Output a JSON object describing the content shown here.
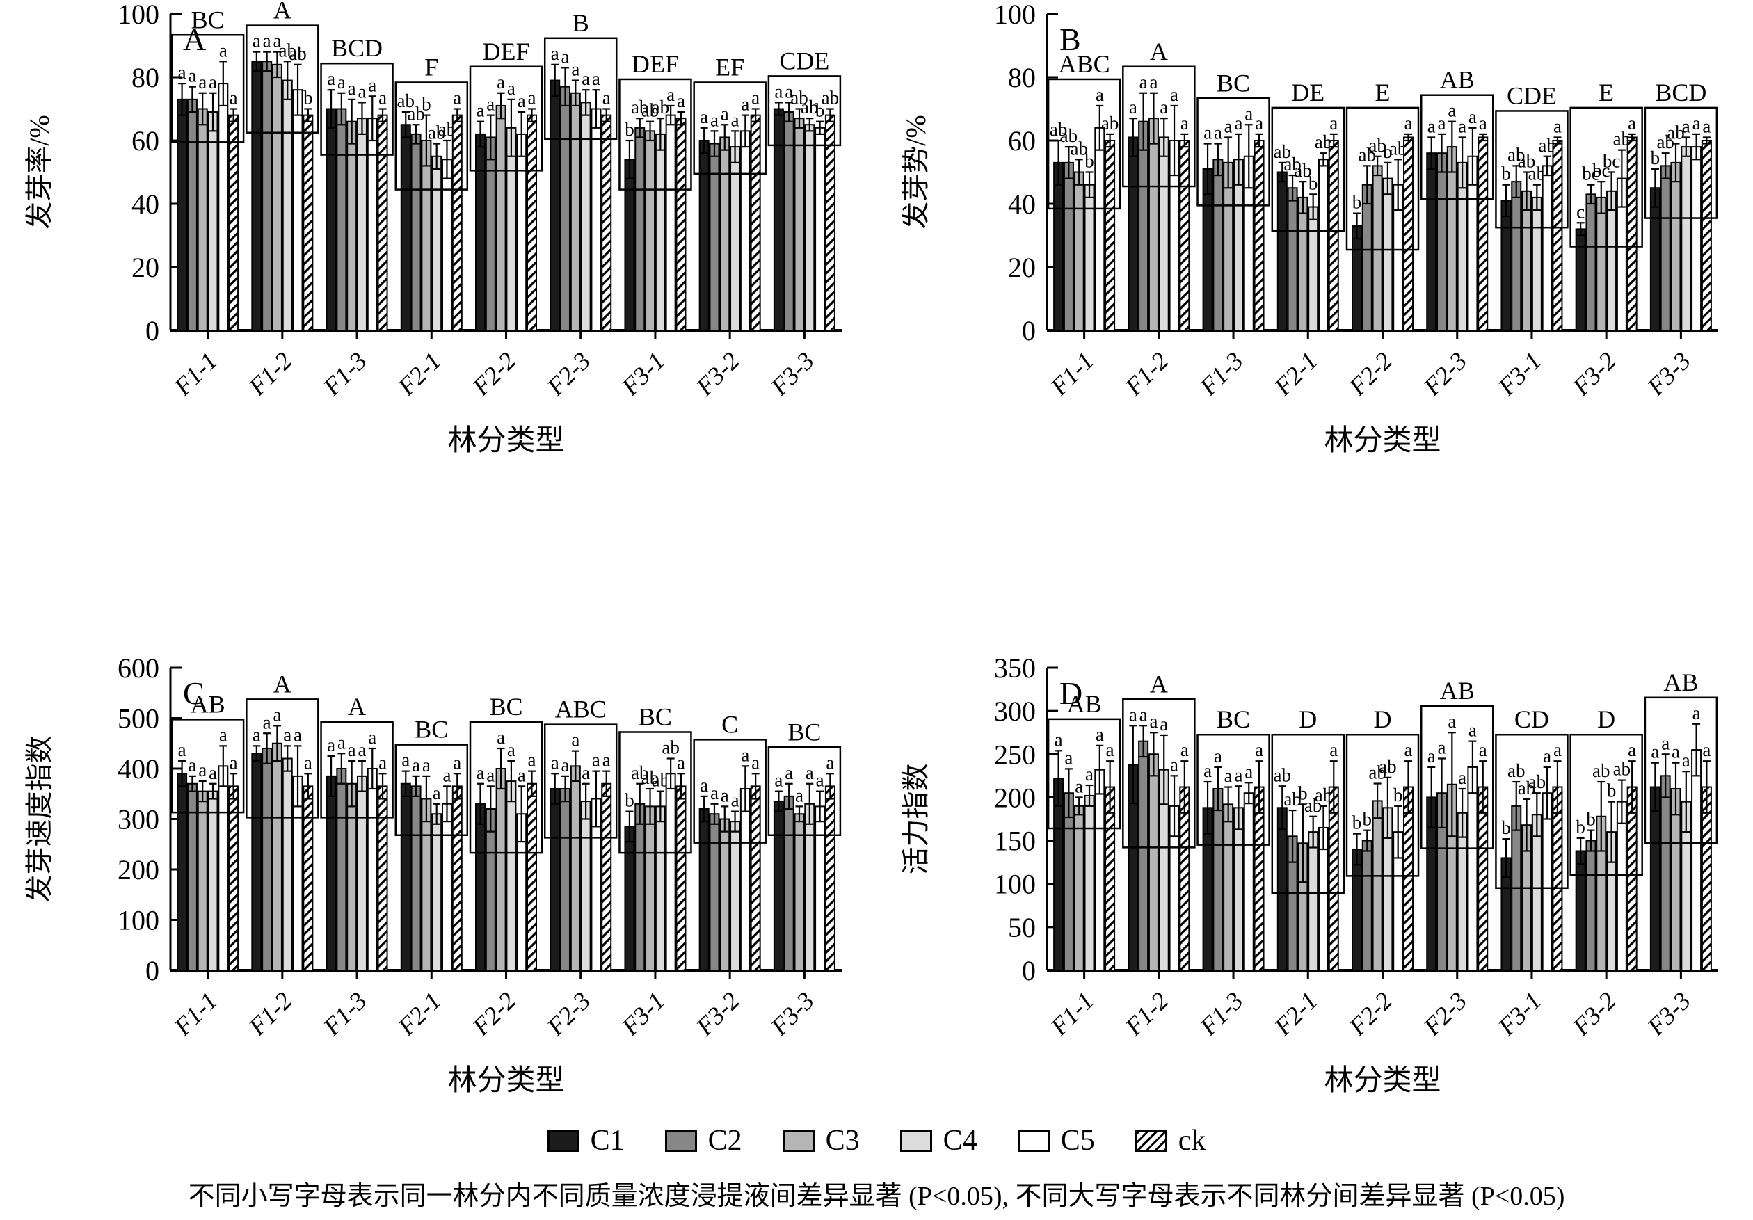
{
  "figure": {
    "caption": "不同小写字母表示同一林分内不同质量浓度浸提液间差异显著 (P<0.05), 不同大写字母表示不同林分间差异显著 (P<0.05)",
    "xlabel": "林分类型",
    "categories": [
      "F1-1",
      "F1-2",
      "F1-3",
      "F2-1",
      "F2-2",
      "F2-3",
      "F3-1",
      "F3-2",
      "F3-3"
    ],
    "legend": [
      {
        "label": "C1",
        "fill": "#1c1c1c",
        "pattern": "solid"
      },
      {
        "label": "C2",
        "fill": "#878787",
        "pattern": "solid"
      },
      {
        "label": "C3",
        "fill": "#b5b5b5",
        "pattern": "solid"
      },
      {
        "label": "C4",
        "fill": "#dcdcdc",
        "pattern": "solid"
      },
      {
        "label": "C5",
        "fill": "#ffffff",
        "pattern": "solid"
      },
      {
        "label": "ck",
        "fill": "#ffffff",
        "pattern": "hatch"
      }
    ]
  },
  "chart_data": [
    {
      "id": "A",
      "type": "bar",
      "ylabel": "发芽率/%",
      "ylim": [
        0,
        100
      ],
      "ytick_step": 20,
      "group_letters": [
        "BC",
        "A",
        "BCD",
        "F",
        "DEF",
        "B",
        "DEF",
        "EF",
        "CDE"
      ],
      "series": [
        {
          "name": "C1",
          "values": [
            73,
            85,
            70,
            65,
            62,
            79,
            54,
            60,
            70
          ],
          "errors": [
            5,
            3,
            6,
            4,
            4,
            5,
            6,
            4,
            2
          ],
          "letters": [
            "a",
            "a",
            "a",
            "ab",
            "a",
            "a",
            "b",
            "a",
            "a"
          ]
        },
        {
          "name": "C2",
          "values": [
            73,
            85,
            70,
            62,
            61,
            77,
            64,
            59,
            69
          ],
          "errors": [
            4,
            3,
            5,
            3,
            7,
            6,
            3,
            4,
            3
          ],
          "letters": [
            "a",
            "a",
            "a",
            "ab",
            "a",
            "a",
            "ab",
            "a",
            "a"
          ]
        },
        {
          "name": "C3",
          "values": [
            70,
            84,
            66,
            60,
            71,
            75,
            63,
            61,
            67
          ],
          "errors": [
            5,
            4,
            7,
            8,
            4,
            4,
            3,
            4,
            3
          ],
          "letters": [
            "a",
            "a",
            "a",
            "b",
            "a",
            "a",
            "ab",
            "a",
            "ab"
          ]
        },
        {
          "name": "C4",
          "values": [
            69,
            79,
            67,
            55,
            64,
            72,
            62,
            58,
            65
          ],
          "errors": [
            6,
            6,
            5,
            4,
            9,
            4,
            5,
            5,
            2
          ],
          "letters": [
            "a",
            "ab",
            "a",
            "ab",
            "a",
            "a",
            "ab",
            "a",
            "ab"
          ]
        },
        {
          "name": "C5",
          "values": [
            78,
            76,
            67,
            54,
            62,
            70,
            68,
            63,
            64
          ],
          "errors": [
            7,
            8,
            7,
            6,
            7,
            6,
            3,
            5,
            2
          ],
          "letters": [
            "a",
            "ab",
            "a",
            "ab",
            "a",
            "a",
            "a",
            "a",
            "b"
          ]
        },
        {
          "name": "ck",
          "values": [
            68,
            68,
            68,
            68,
            68,
            68,
            67,
            68,
            68
          ],
          "errors": [
            2,
            2,
            2,
            2,
            2,
            2,
            2,
            2,
            2
          ],
          "letters": [
            "a",
            "b",
            "a",
            "a",
            "a",
            "a",
            "a",
            "a",
            "ab"
          ]
        }
      ]
    },
    {
      "id": "B",
      "type": "bar",
      "ylabel": "发芽势/%",
      "ylim": [
        0,
        100
      ],
      "ytick_step": 20,
      "group_letters": [
        "ABC",
        "A",
        "BC",
        "DE",
        "E",
        "AB",
        "CDE",
        "E",
        "BCD"
      ],
      "series": [
        {
          "name": "C1",
          "values": [
            53,
            61,
            51,
            50,
            33,
            56,
            41,
            32,
            45
          ],
          "errors": [
            7,
            6,
            8,
            3,
            4,
            5,
            5,
            2,
            6
          ],
          "letters": [
            "ab",
            "a",
            "a",
            "ab",
            "b",
            "a",
            "b",
            "c",
            "b"
          ]
        },
        {
          "name": "C2",
          "values": [
            53,
            66,
            54,
            45,
            46,
            56,
            47,
            43,
            52
          ],
          "errors": [
            5,
            9,
            5,
            4,
            6,
            6,
            5,
            3,
            4
          ],
          "letters": [
            "ab",
            "a",
            "a",
            "ab",
            "ab",
            "a",
            "ab",
            "bc",
            "ab"
          ]
        },
        {
          "name": "C3",
          "values": [
            50,
            67,
            53,
            42,
            52,
            58,
            44,
            42,
            53
          ],
          "errors": [
            4,
            8,
            8,
            5,
            3,
            8,
            6,
            5,
            6
          ],
          "letters": [
            "ab",
            "a",
            "a",
            "ab",
            "ab",
            "a",
            "ab",
            "bc",
            "ab"
          ]
        },
        {
          "name": "C4",
          "values": [
            46,
            61,
            54,
            39,
            48,
            53,
            42,
            44,
            58
          ],
          "errors": [
            4,
            6,
            8,
            4,
            5,
            8,
            4,
            6,
            3
          ],
          "letters": [
            "b",
            "a",
            "a",
            "b",
            "b",
            "a",
            "ab",
            "bc",
            "a"
          ]
        },
        {
          "name": "C5",
          "values": [
            64,
            60,
            55,
            54,
            46,
            55,
            52,
            48,
            58
          ],
          "errors": [
            7,
            11,
            10,
            2,
            8,
            9,
            3,
            9,
            4
          ],
          "letters": [
            "a",
            "a",
            "a",
            "ab",
            "ab",
            "a",
            "ab",
            "ab",
            "a"
          ]
        },
        {
          "name": "ck",
          "values": [
            60,
            60,
            60,
            60,
            61,
            61,
            60,
            61,
            60
          ],
          "errors": [
            2,
            2,
            2,
            2,
            1,
            1,
            1,
            1,
            1
          ],
          "letters": [
            "ab",
            "a",
            "a",
            "a",
            "a",
            "a",
            "a",
            "a",
            "a"
          ]
        }
      ]
    },
    {
      "id": "C",
      "type": "bar",
      "ylabel": "发芽速度指数",
      "ylim": [
        0,
        600
      ],
      "ytick_step": 100,
      "group_letters": [
        "AB",
        "A",
        "A",
        "BC",
        "BC",
        "ABC",
        "BC",
        "C",
        "BC"
      ],
      "series": [
        {
          "name": "C1",
          "values": [
            390,
            430,
            385,
            370,
            330,
            360,
            285,
            320,
            335
          ],
          "errors": [
            25,
            15,
            40,
            25,
            40,
            30,
            30,
            25,
            20
          ],
          "letters": [
            "a",
            "a",
            "a",
            "a",
            "a",
            "a",
            "b",
            "a",
            "a"
          ]
        },
        {
          "name": "C2",
          "values": [
            370,
            440,
            400,
            365,
            320,
            360,
            330,
            310,
            345
          ],
          "errors": [
            15,
            30,
            30,
            20,
            45,
            25,
            40,
            20,
            25
          ],
          "letters": [
            "a",
            "a",
            "a",
            "a",
            "a",
            "a",
            "ab",
            "a",
            "a"
          ]
        },
        {
          "name": "C3",
          "values": [
            355,
            450,
            370,
            340,
            400,
            405,
            325,
            300,
            310
          ],
          "errors": [
            20,
            35,
            45,
            45,
            40,
            30,
            35,
            25,
            15
          ],
          "letters": [
            "a",
            "a",
            "a",
            "a",
            "a",
            "a",
            "ab",
            "a",
            "a"
          ]
        },
        {
          "name": "C4",
          "values": [
            355,
            420,
            385,
            310,
            375,
            335,
            325,
            295,
            330
          ],
          "errors": [
            15,
            25,
            30,
            20,
            40,
            35,
            30,
            20,
            40
          ],
          "letters": [
            "a",
            "a",
            "a",
            "a",
            "a",
            "a",
            "ab",
            "a",
            "a"
          ]
        },
        {
          "name": "C5",
          "values": [
            405,
            385,
            400,
            330,
            310,
            340,
            390,
            360,
            325
          ],
          "errors": [
            40,
            60,
            40,
            35,
            55,
            55,
            30,
            45,
            30
          ],
          "letters": [
            "a",
            "a",
            "a",
            "a",
            "a",
            "a",
            "ab",
            "a",
            "a"
          ]
        },
        {
          "name": "ck",
          "values": [
            365,
            365,
            365,
            365,
            370,
            370,
            365,
            365,
            365
          ],
          "errors": [
            25,
            25,
            25,
            25,
            25,
            25,
            25,
            25,
            25
          ],
          "letters": [
            "a",
            "a",
            "a",
            "a",
            "a",
            "a",
            "a",
            "a",
            "a"
          ]
        }
      ]
    },
    {
      "id": "D",
      "type": "bar",
      "ylabel": "活力指数",
      "ylim": [
        0,
        350
      ],
      "ytick_step": 50,
      "group_letters": [
        "AB",
        "A",
        "BC",
        "D",
        "D",
        "AB",
        "CD",
        "D",
        "AB"
      ],
      "series": [
        {
          "name": "C1",
          "values": [
            222,
            238,
            188,
            188,
            140,
            200,
            130,
            138,
            212
          ],
          "errors": [
            32,
            45,
            30,
            25,
            18,
            35,
            22,
            15,
            28
          ],
          "letters": [
            "a",
            "a",
            "a",
            "ab",
            "b",
            "a",
            "b",
            "b",
            "a"
          ]
        },
        {
          "name": "C2",
          "values": [
            205,
            265,
            210,
            155,
            150,
            205,
            190,
            150,
            225
          ],
          "errors": [
            28,
            18,
            25,
            30,
            12,
            40,
            28,
            12,
            25
          ],
          "letters": [
            "a",
            "a",
            "a",
            "ab",
            "b",
            "a",
            "ab",
            "b",
            "a"
          ]
        },
        {
          "name": "C3",
          "values": [
            190,
            250,
            192,
            147,
            196,
            215,
            168,
            178,
            210
          ],
          "errors": [
            10,
            25,
            20,
            45,
            20,
            60,
            30,
            40,
            30
          ],
          "letters": [
            "a",
            "a",
            "a",
            "b",
            "ab",
            "a",
            "ab",
            "ab",
            "a"
          ]
        },
        {
          "name": "C4",
          "values": [
            202,
            232,
            188,
            160,
            188,
            182,
            180,
            160,
            195
          ],
          "errors": [
            12,
            40,
            25,
            18,
            35,
            28,
            25,
            35,
            35
          ],
          "letters": [
            "a",
            "a",
            "a",
            "ab",
            "ab",
            "a",
            "ab",
            "b",
            "a"
          ]
        },
        {
          "name": "C5",
          "values": [
            232,
            190,
            205,
            165,
            160,
            235,
            205,
            195,
            255
          ],
          "errors": [
            28,
            35,
            12,
            25,
            30,
            30,
            30,
            25,
            30
          ],
          "letters": [
            "a",
            "a",
            "a",
            "ab",
            "b",
            "a",
            "a",
            "ab",
            "a"
          ]
        },
        {
          "name": "ck",
          "values": [
            212,
            212,
            212,
            212,
            212,
            212,
            212,
            212,
            212
          ],
          "errors": [
            30,
            30,
            30,
            30,
            30,
            30,
            30,
            30,
            30
          ],
          "letters": [
            "a",
            "a",
            "a",
            "a",
            "a",
            "a",
            "a",
            "a",
            "a"
          ]
        }
      ]
    }
  ]
}
